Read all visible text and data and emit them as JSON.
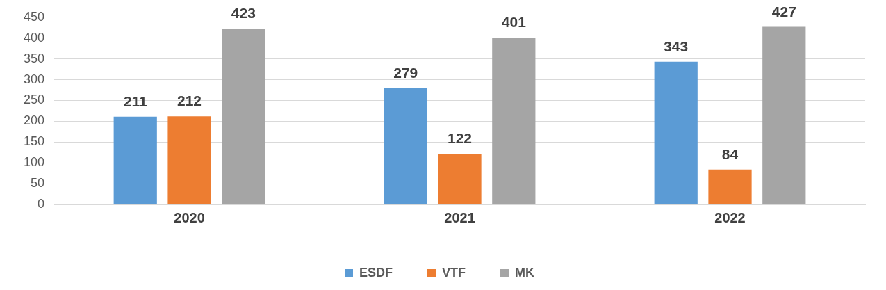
{
  "chart_data": {
    "type": "bar",
    "categories": [
      "2020",
      "2021",
      "2022"
    ],
    "series": [
      {
        "name": "ESDF",
        "color": "#5b9bd5",
        "values": [
          211,
          279,
          343
        ]
      },
      {
        "name": "VTF",
        "color": "#ed7d31",
        "values": [
          212,
          122,
          84
        ]
      },
      {
        "name": "MK",
        "color": "#a5a5a5",
        "values": [
          423,
          401,
          427
        ]
      }
    ],
    "ylim": [
      0,
      450
    ],
    "yticks": [
      0,
      50,
      100,
      150,
      200,
      250,
      300,
      350,
      400,
      450
    ],
    "grid": "y",
    "legend": "bottom",
    "data_labels": true
  }
}
